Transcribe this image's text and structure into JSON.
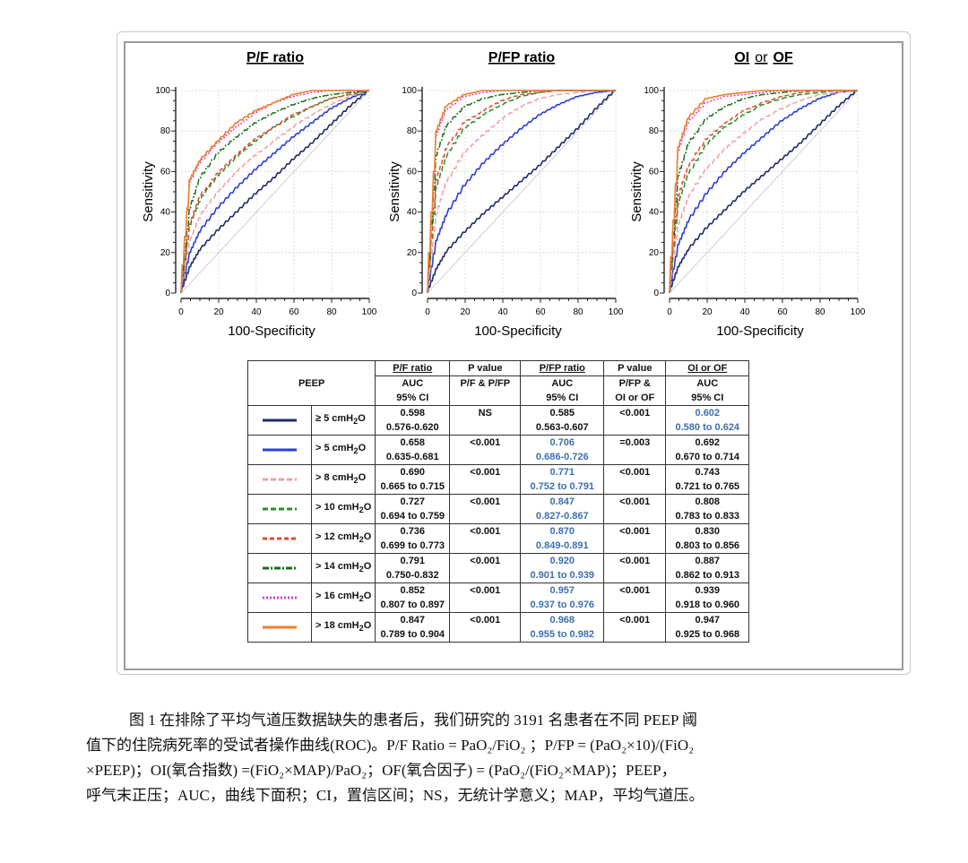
{
  "chart_data": [
    {
      "type": "line",
      "title": "P/F ratio",
      "xlabel": "100-Specificity",
      "ylabel": "Sensitivity",
      "xlim": [
        0,
        100
      ],
      "ylim": [
        0,
        100
      ],
      "xticks": [
        "0",
        "20",
        "40",
        "60",
        "80",
        "100"
      ],
      "yticks": [
        "0",
        "20",
        "40",
        "60",
        "80",
        "100"
      ],
      "grid": true,
      "series": [
        {
          "name": "≥ 5 cmH2O",
          "auc": 0.598,
          "color": "#1f2a6b",
          "dash": "",
          "x": [
            0,
            5,
            10,
            20,
            30,
            40,
            50,
            60,
            70,
            80,
            90,
            100
          ],
          "y": [
            0,
            13,
            21,
            31,
            40,
            49,
            57,
            66,
            74,
            83,
            92,
            100
          ]
        },
        {
          "name": "> 5 cmH2O",
          "auc": 0.658,
          "color": "#2a3fd6",
          "dash": "",
          "x": [
            0,
            5,
            10,
            20,
            30,
            40,
            50,
            60,
            70,
            80,
            90,
            100
          ],
          "y": [
            0,
            20,
            30,
            42,
            52,
            61,
            69,
            77,
            84,
            91,
            96,
            100
          ]
        },
        {
          "name": "> 8 cmH2O",
          "auc": 0.69,
          "color": "#f0a0a0",
          "dash": "6,3",
          "x": [
            0,
            5,
            10,
            20,
            30,
            40,
            50,
            60,
            70,
            80,
            90,
            100
          ],
          "y": [
            0,
            26,
            37,
            50,
            60,
            68,
            75,
            82,
            88,
            93,
            97,
            100
          ]
        },
        {
          "name": "> 10 cmH2O",
          "auc": 0.727,
          "color": "#2e8b2e",
          "dash": "6,3",
          "x": [
            0,
            5,
            10,
            20,
            30,
            40,
            50,
            60,
            70,
            80,
            90,
            100
          ],
          "y": [
            0,
            33,
            45,
            58,
            67,
            75,
            82,
            87,
            92,
            96,
            98,
            100
          ]
        },
        {
          "name": "> 12 cmH2O",
          "auc": 0.736,
          "color": "#e34a2a",
          "dash": "5,3",
          "x": [
            0,
            5,
            10,
            20,
            30,
            40,
            50,
            60,
            70,
            80,
            90,
            100
          ],
          "y": [
            0,
            34,
            47,
            59,
            68,
            76,
            82,
            88,
            92,
            96,
            98,
            100
          ]
        },
        {
          "name": "> 14 cmH2O",
          "auc": 0.791,
          "color": "#1e6b1e",
          "dash": "7,2,2,2",
          "x": [
            0,
            5,
            10,
            20,
            30,
            40,
            50,
            60,
            70,
            80,
            90,
            100
          ],
          "y": [
            0,
            42,
            56,
            69,
            77,
            84,
            89,
            93,
            96,
            98,
            99,
            100
          ]
        },
        {
          "name": "> 16 cmH2O",
          "auc": 0.852,
          "color": "#d640d6",
          "dash": "2,2",
          "x": [
            0,
            5,
            10,
            20,
            30,
            40,
            50,
            60,
            70,
            80,
            90,
            100
          ],
          "y": [
            0,
            55,
            64,
            74,
            82,
            89,
            94,
            97,
            99,
            100,
            100,
            100
          ]
        },
        {
          "name": "> 18 cmH2O",
          "auc": 0.847,
          "color": "#f07f2a",
          "dash": "",
          "x": [
            0,
            5,
            10,
            20,
            30,
            40,
            50,
            60,
            70,
            80,
            90,
            100
          ],
          "y": [
            0,
            56,
            65,
            75,
            84,
            90,
            94,
            98,
            100,
            100,
            100,
            100
          ]
        }
      ]
    },
    {
      "type": "line",
      "title": "P/FP ratio",
      "xlabel": "100-Specificity",
      "ylabel": "Sensitivity",
      "xlim": [
        0,
        100
      ],
      "ylim": [
        0,
        100
      ],
      "xticks": [
        "0",
        "20",
        "40",
        "60",
        "80",
        "100"
      ],
      "yticks": [
        "0",
        "20",
        "40",
        "60",
        "80",
        "100"
      ],
      "grid": true,
      "series": [
        {
          "name": "≥ 5 cmH2O",
          "auc": 0.585,
          "color": "#1f2a6b",
          "dash": "",
          "x": [
            0,
            5,
            10,
            20,
            30,
            40,
            50,
            60,
            70,
            80,
            90,
            100
          ],
          "y": [
            0,
            12,
            20,
            30,
            39,
            47,
            55,
            63,
            72,
            81,
            91,
            100
          ]
        },
        {
          "name": "> 5 cmH2O",
          "auc": 0.706,
          "color": "#2a3fd6",
          "dash": "",
          "x": [
            0,
            5,
            10,
            20,
            30,
            40,
            50,
            60,
            70,
            80,
            90,
            100
          ],
          "y": [
            0,
            26,
            38,
            53,
            64,
            73,
            81,
            88,
            93,
            97,
            99,
            100
          ]
        },
        {
          "name": "> 8 cmH2O",
          "auc": 0.771,
          "color": "#f0a0a0",
          "dash": "6,3",
          "x": [
            0,
            5,
            10,
            20,
            30,
            40,
            50,
            60,
            70,
            80,
            90,
            100
          ],
          "y": [
            0,
            39,
            54,
            69,
            78,
            86,
            92,
            96,
            98,
            99,
            100,
            100
          ]
        },
        {
          "name": "> 10 cmH2O",
          "auc": 0.847,
          "color": "#2e8b2e",
          "dash": "6,3",
          "x": [
            0,
            5,
            10,
            20,
            30,
            40,
            50,
            60,
            70,
            80,
            90,
            100
          ],
          "y": [
            0,
            52,
            67,
            81,
            88,
            93,
            97,
            99,
            100,
            100,
            100,
            100
          ]
        },
        {
          "name": "> 12 cmH2O",
          "auc": 0.87,
          "color": "#e34a2a",
          "dash": "5,3",
          "x": [
            0,
            5,
            10,
            20,
            30,
            40,
            50,
            60,
            70,
            80,
            90,
            100
          ],
          "y": [
            0,
            56,
            71,
            84,
            90,
            95,
            98,
            99,
            100,
            100,
            100,
            100
          ]
        },
        {
          "name": "> 14 cmH2O",
          "auc": 0.92,
          "color": "#1e6b1e",
          "dash": "7,2,2,2",
          "x": [
            0,
            5,
            10,
            20,
            30,
            40,
            50,
            60,
            70,
            80,
            90,
            100
          ],
          "y": [
            0,
            68,
            82,
            92,
            96,
            98,
            99,
            100,
            100,
            100,
            100,
            100
          ]
        },
        {
          "name": "> 16 cmH2O",
          "auc": 0.957,
          "color": "#d640d6",
          "dash": "2,2",
          "x": [
            0,
            5,
            10,
            20,
            30,
            40,
            50,
            60,
            70,
            80,
            90,
            100
          ],
          "y": [
            0,
            78,
            90,
            97,
            99,
            100,
            100,
            100,
            100,
            100,
            100,
            100
          ]
        },
        {
          "name": "> 18 cmH2O",
          "auc": 0.968,
          "color": "#f07f2a",
          "dash": "",
          "x": [
            0,
            5,
            10,
            20,
            30,
            40,
            50,
            60,
            70,
            80,
            90,
            100
          ],
          "y": [
            0,
            80,
            92,
            98,
            100,
            100,
            100,
            100,
            100,
            100,
            100,
            100
          ]
        }
      ]
    },
    {
      "type": "line",
      "title": "OI or OF",
      "xlabel": "100-Specificity",
      "ylabel": "Sensitivity",
      "xlim": [
        0,
        100
      ],
      "ylim": [
        0,
        100
      ],
      "xticks": [
        "0",
        "20",
        "40",
        "60",
        "80",
        "100"
      ],
      "yticks": [
        "0",
        "20",
        "40",
        "60",
        "80",
        "100"
      ],
      "grid": true,
      "series": [
        {
          "name": "≥ 5 cmH2O",
          "auc": 0.602,
          "color": "#1f2a6b",
          "dash": "",
          "x": [
            0,
            5,
            10,
            20,
            30,
            40,
            50,
            60,
            70,
            80,
            90,
            100
          ],
          "y": [
            0,
            13,
            21,
            32,
            41,
            50,
            58,
            66,
            74,
            83,
            92,
            100
          ]
        },
        {
          "name": "> 5 cmH2O",
          "auc": 0.692,
          "color": "#2a3fd6",
          "dash": "",
          "x": [
            0,
            5,
            10,
            20,
            30,
            40,
            50,
            60,
            70,
            80,
            90,
            100
          ],
          "y": [
            0,
            24,
            35,
            49,
            60,
            69,
            77,
            85,
            91,
            96,
            99,
            100
          ]
        },
        {
          "name": "> 8 cmH2O",
          "auc": 0.743,
          "color": "#f0a0a0",
          "dash": "6,3",
          "x": [
            0,
            5,
            10,
            20,
            30,
            40,
            50,
            60,
            70,
            80,
            90,
            100
          ],
          "y": [
            0,
            34,
            47,
            61,
            71,
            79,
            86,
            91,
            95,
            98,
            99,
            100
          ]
        },
        {
          "name": "> 10 cmH2O",
          "auc": 0.808,
          "color": "#2e8b2e",
          "dash": "6,3",
          "x": [
            0,
            5,
            10,
            20,
            30,
            40,
            50,
            60,
            70,
            80,
            90,
            100
          ],
          "y": [
            0,
            44,
            58,
            73,
            82,
            88,
            93,
            96,
            98,
            99,
            100,
            100
          ]
        },
        {
          "name": "> 12 cmH2O",
          "auc": 0.83,
          "color": "#e34a2a",
          "dash": "5,3",
          "x": [
            0,
            5,
            10,
            20,
            30,
            40,
            50,
            60,
            70,
            80,
            90,
            100
          ],
          "y": [
            0,
            48,
            62,
            76,
            84,
            90,
            94,
            97,
            99,
            100,
            100,
            100
          ]
        },
        {
          "name": "> 14 cmH2O",
          "auc": 0.887,
          "color": "#1e6b1e",
          "dash": "7,2,2,2",
          "x": [
            0,
            5,
            10,
            20,
            30,
            40,
            50,
            60,
            70,
            80,
            90,
            100
          ],
          "y": [
            0,
            58,
            73,
            86,
            92,
            96,
            98,
            99,
            100,
            100,
            100,
            100
          ]
        },
        {
          "name": "> 16 cmH2O",
          "auc": 0.939,
          "color": "#d640d6",
          "dash": "2,2",
          "x": [
            0,
            5,
            10,
            20,
            30,
            40,
            50,
            60,
            70,
            80,
            90,
            100
          ],
          "y": [
            0,
            70,
            84,
            94,
            97,
            98,
            99,
            100,
            100,
            100,
            100,
            100
          ]
        },
        {
          "name": "> 18 cmH2O",
          "auc": 0.947,
          "color": "#f07f2a",
          "dash": "",
          "x": [
            0,
            5,
            10,
            20,
            30,
            40,
            50,
            60,
            70,
            80,
            90,
            100
          ],
          "y": [
            0,
            72,
            86,
            96,
            98,
            99,
            100,
            100,
            100,
            100,
            100,
            100
          ]
        }
      ]
    }
  ],
  "panel_title_or": {
    "left": "OI",
    "mid": "or",
    "right": "OF"
  },
  "table": {
    "peep_header": "PEEP",
    "col_headers": [
      "P/F ratio",
      "P value",
      "P/FP ratio",
      "P value",
      "OI or OF"
    ],
    "col_subheaders": [
      [
        "AUC",
        "95% CI"
      ],
      [
        "P/F & P/FP",
        ""
      ],
      [
        "AUC",
        "95% CI"
      ],
      [
        "P/FP &",
        "OI or OF"
      ],
      [
        "AUC",
        "95% CI"
      ]
    ],
    "rows": [
      {
        "label": "≥ 5 cmH",
        "sub": "2",
        "tail": "O",
        "pf_auc": "0.598",
        "pf_ci": "0.576-0.620",
        "p1": "NS",
        "pfp_auc": "0.585",
        "pfp_ci": "0.563-0.607",
        "p2": "<0.001",
        "oi_auc": "0.602",
        "oi_ci": "0.580 to 0.624"
      },
      {
        "label": "> 5 cmH",
        "sub": "2",
        "tail": "O",
        "pf_auc": "0.658",
        "pf_ci": "0.635-0.681",
        "p1": "<0.001",
        "pfp_auc": "0.706",
        "pfp_ci": "0.686-0.726",
        "p2": "=0.003",
        "oi_auc": "0.692",
        "oi_ci": "0.670 to 0.714"
      },
      {
        "label": "> 8 cmH",
        "sub": "2",
        "tail": "O",
        "pf_auc": "0.690",
        "pf_ci": "0.665 to 0.715",
        "p1": "<0.001",
        "pfp_auc": "0.771",
        "pfp_ci": "0.752 to 0.791",
        "p2": "<0.001",
        "oi_auc": "0.743",
        "oi_ci": "0.721 to 0.765"
      },
      {
        "label": "> 10 cmH",
        "sub": "2",
        "tail": "O",
        "pf_auc": "0.727",
        "pf_ci": "0.694 to 0.759",
        "p1": "<0.001",
        "pfp_auc": "0.847",
        "pfp_ci": "0.827-0.867",
        "p2": "<0.001",
        "oi_auc": "0.808",
        "oi_ci": "0.783 to 0.833"
      },
      {
        "label": "> 12 cmH",
        "sub": "2",
        "tail": "O",
        "pf_auc": "0.736",
        "pf_ci": "0.699 to 0.773",
        "p1": "<0.001",
        "pfp_auc": "0.870",
        "pfp_ci": "0.849-0.891",
        "p2": "<0.001",
        "oi_auc": "0.830",
        "oi_ci": "0.803 to 0.856"
      },
      {
        "label": "> 14 cmH",
        "sub": "2",
        "tail": "O",
        "pf_auc": "0.791",
        "pf_ci": "0.750-0.832",
        "p1": "<0.001",
        "pfp_auc": "0.920",
        "pfp_ci": "0.901 to 0.939",
        "p2": "<0.001",
        "oi_auc": "0.887",
        "oi_ci": "0.862 to 0.913"
      },
      {
        "label": "> 16 cmH",
        "sub": "2",
        "tail": "O",
        "pf_auc": "0.852",
        "pf_ci": "0.807 to 0.897",
        "p1": "<0.001",
        "pfp_auc": "0.957",
        "pfp_ci": "0.937 to 0.976",
        "p2": "<0.001",
        "oi_auc": "0.939",
        "oi_ci": "0.918 to 0.960"
      },
      {
        "label": "> 18 cmH",
        "sub": "2",
        "tail": "O",
        "pf_auc": "0.847",
        "pf_ci": "0.789 to 0.904",
        "p1": "<0.001",
        "pfp_auc": "0.968",
        "pfp_ci": "0.955 to 0.982",
        "p2": "<0.001",
        "oi_auc": "0.947",
        "oi_ci": "0.925 to 0.968"
      }
    ],
    "blue_color": "#3d6fb0"
  },
  "caption": {
    "line1": "图 1 在排除了平均气道压数据缺失的患者后，我们研究的 3191 名患者在不同 PEEP 阈",
    "line2": "值下的住院病死率的受试者操作曲线(ROC)。P/F Ratio = PaO₂/FiO₂ ；P/FP = (PaO₂×10)/(FiO₂",
    "line3": "×PEEP)；OI(氧合指数) =(FiO₂×MAP)/PaO₂；OF(氧合因子) = (PaO₂/(FiO₂×MAP)；PEEP，",
    "line4": "呼气末正压；AUC，曲线下面积；CI，置信区间；NS，无统计学意义；MAP，平均气道压。"
  }
}
